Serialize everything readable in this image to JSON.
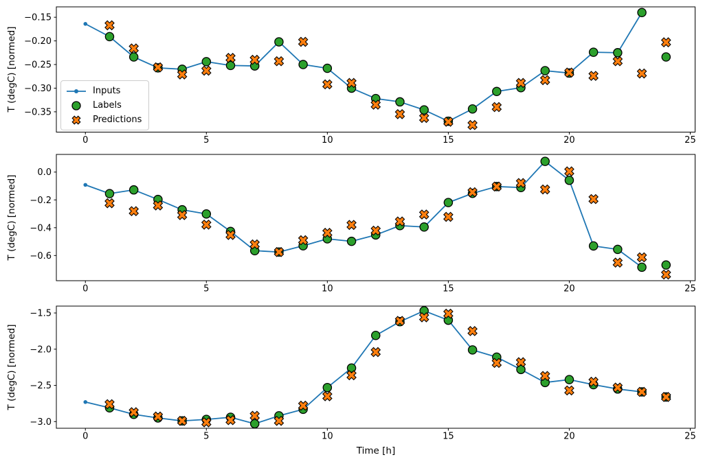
{
  "figure": {
    "background": "#ffffff"
  },
  "legend": {
    "location": "upper left inside first subplot",
    "items": [
      {
        "label": "Inputs",
        "marker": "line-dot",
        "color": "#1f77b4"
      },
      {
        "label": "Labels",
        "marker": "circle",
        "color": "#2ca02c",
        "edge_color": "#000000"
      },
      {
        "label": "Predictions",
        "marker": "x-cross",
        "color": "#ff7f0e",
        "edge_color": "#000000"
      }
    ]
  },
  "chart_data": [
    {
      "name": "subplot-top",
      "type": "line",
      "title": "",
      "xlabel": "",
      "ylabel": "T (degC) [normed]",
      "xlim": [
        -1.2,
        25.2
      ],
      "ylim": [
        -0.393,
        -0.128
      ],
      "xticks": [
        0,
        5,
        10,
        15,
        20,
        25
      ],
      "xtick_labels": [
        "0",
        "5",
        "10",
        "15",
        "20",
        "25"
      ],
      "yticks": [
        -0.15,
        -0.2,
        -0.25,
        -0.3,
        -0.35
      ],
      "ytick_labels": [
        "−0.15",
        "−0.20",
        "−0.25",
        "−0.30",
        "−0.35"
      ],
      "grid": false,
      "series": [
        {
          "name": "Inputs",
          "render": "line",
          "marker": "dot",
          "color": "#1f77b4",
          "x": [
            0,
            1,
            2,
            3,
            4,
            5,
            6,
            7,
            8,
            9,
            10,
            11,
            12,
            13,
            14,
            15,
            16,
            17,
            18,
            19,
            20,
            21,
            22,
            23
          ],
          "y": [
            -0.164,
            -0.191,
            -0.234,
            -0.257,
            -0.26,
            -0.244,
            -0.252,
            -0.253,
            -0.202,
            -0.25,
            -0.258,
            -0.3,
            -0.322,
            -0.329,
            -0.346,
            -0.37,
            -0.344,
            -0.307,
            -0.299,
            -0.263,
            -0.268,
            -0.224,
            -0.225,
            -0.14
          ]
        },
        {
          "name": "Labels",
          "render": "scatter",
          "marker": "circle",
          "color": "#2ca02c",
          "edge_color": "#000000",
          "x": [
            1,
            2,
            3,
            4,
            5,
            6,
            7,
            8,
            9,
            10,
            11,
            12,
            13,
            14,
            15,
            16,
            17,
            18,
            19,
            20,
            21,
            22,
            23,
            24
          ],
          "y": [
            -0.191,
            -0.234,
            -0.257,
            -0.26,
            -0.244,
            -0.252,
            -0.253,
            -0.202,
            -0.25,
            -0.258,
            -0.3,
            -0.322,
            -0.329,
            -0.346,
            -0.37,
            -0.344,
            -0.307,
            -0.299,
            -0.263,
            -0.268,
            -0.224,
            -0.225,
            -0.14,
            -0.234
          ]
        },
        {
          "name": "Predictions",
          "render": "scatter",
          "marker": "X",
          "color": "#ff7f0e",
          "edge_color": "#000000",
          "x": [
            1,
            2,
            3,
            4,
            5,
            6,
            7,
            8,
            9,
            10,
            11,
            12,
            13,
            14,
            15,
            16,
            17,
            18,
            19,
            20,
            21,
            22,
            23,
            24
          ],
          "y": [
            -0.167,
            -0.216,
            -0.256,
            -0.271,
            -0.263,
            -0.236,
            -0.24,
            -0.243,
            -0.202,
            -0.292,
            -0.289,
            -0.335,
            -0.355,
            -0.363,
            -0.371,
            -0.378,
            -0.34,
            -0.289,
            -0.283,
            -0.267,
            -0.274,
            -0.243,
            -0.269,
            -0.203
          ]
        }
      ]
    },
    {
      "name": "subplot-middle",
      "type": "line",
      "title": "",
      "xlabel": "",
      "ylabel": "T (degC) [normed]",
      "xlim": [
        -1.2,
        25.2
      ],
      "ylim": [
        -0.781,
        0.127
      ],
      "xticks": [
        0,
        5,
        10,
        15,
        20,
        25
      ],
      "xtick_labels": [
        "0",
        "5",
        "10",
        "15",
        "20",
        "25"
      ],
      "yticks": [
        0.0,
        -0.2,
        -0.4,
        -0.6
      ],
      "ytick_labels": [
        "0.0",
        "−0.2",
        "−0.4",
        "−0.6"
      ],
      "grid": false,
      "series": [
        {
          "name": "Inputs",
          "render": "line",
          "marker": "dot",
          "color": "#1f77b4",
          "x": [
            0,
            1,
            2,
            3,
            4,
            5,
            6,
            7,
            8,
            9,
            10,
            11,
            12,
            13,
            14,
            15,
            16,
            17,
            18,
            19,
            20,
            21,
            22,
            23
          ],
          "y": [
            -0.092,
            -0.155,
            -0.128,
            -0.197,
            -0.271,
            -0.301,
            -0.427,
            -0.565,
            -0.575,
            -0.53,
            -0.48,
            -0.498,
            -0.452,
            -0.385,
            -0.395,
            -0.219,
            -0.153,
            -0.104,
            -0.111,
            0.077,
            -0.059,
            -0.531,
            -0.556,
            -0.684
          ]
        },
        {
          "name": "Labels",
          "render": "scatter",
          "marker": "circle",
          "color": "#2ca02c",
          "edge_color": "#000000",
          "x": [
            1,
            2,
            3,
            4,
            5,
            6,
            7,
            8,
            9,
            10,
            11,
            12,
            13,
            14,
            15,
            16,
            17,
            18,
            19,
            20,
            21,
            22,
            23,
            24
          ],
          "y": [
            -0.155,
            -0.128,
            -0.197,
            -0.271,
            -0.301,
            -0.427,
            -0.565,
            -0.575,
            -0.53,
            -0.48,
            -0.498,
            -0.452,
            -0.385,
            -0.395,
            -0.219,
            -0.153,
            -0.104,
            -0.111,
            0.077,
            -0.059,
            -0.531,
            -0.556,
            -0.684,
            -0.668
          ]
        },
        {
          "name": "Predictions",
          "render": "scatter",
          "marker": "X",
          "color": "#ff7f0e",
          "edge_color": "#000000",
          "x": [
            1,
            2,
            3,
            4,
            5,
            6,
            7,
            8,
            9,
            10,
            11,
            12,
            13,
            14,
            15,
            16,
            17,
            18,
            19,
            20,
            21,
            22,
            23,
            24
          ],
          "y": [
            -0.224,
            -0.281,
            -0.24,
            -0.309,
            -0.378,
            -0.452,
            -0.52,
            -0.575,
            -0.49,
            -0.437,
            -0.38,
            -0.421,
            -0.355,
            -0.305,
            -0.322,
            -0.145,
            -0.104,
            -0.079,
            -0.125,
            0.005,
            -0.194,
            -0.651,
            -0.613,
            -0.737
          ]
        }
      ]
    },
    {
      "name": "subplot-bottom",
      "type": "line",
      "title": "",
      "xlabel": "Time [h]",
      "ylabel": "T (degC) [normed]",
      "xlim": [
        -1.2,
        25.2
      ],
      "ylim": [
        -3.092,
        -1.405
      ],
      "xticks": [
        0,
        5,
        10,
        15,
        20,
        25
      ],
      "xtick_labels": [
        "0",
        "5",
        "10",
        "15",
        "20",
        "25"
      ],
      "yticks": [
        -1.5,
        -2.0,
        -2.5,
        -3.0
      ],
      "ytick_labels": [
        "−1.5",
        "−2.0",
        "−2.5",
        "−3.0"
      ],
      "grid": false,
      "series": [
        {
          "name": "Inputs",
          "render": "line",
          "marker": "dot",
          "color": "#1f77b4",
          "x": [
            0,
            1,
            2,
            3,
            4,
            5,
            6,
            7,
            8,
            9,
            10,
            11,
            12,
            13,
            14,
            15,
            16,
            17,
            18,
            19,
            20,
            21,
            22,
            23
          ],
          "y": [
            -2.73,
            -2.81,
            -2.9,
            -2.95,
            -2.99,
            -2.97,
            -2.94,
            -3.03,
            -2.92,
            -2.83,
            -2.53,
            -2.26,
            -1.81,
            -1.62,
            -1.47,
            -1.6,
            -2.01,
            -2.11,
            -2.28,
            -2.46,
            -2.42,
            -2.49,
            -2.55,
            -2.59
          ]
        },
        {
          "name": "Labels",
          "render": "scatter",
          "marker": "circle",
          "color": "#2ca02c",
          "edge_color": "#000000",
          "x": [
            1,
            2,
            3,
            4,
            5,
            6,
            7,
            8,
            9,
            10,
            11,
            12,
            13,
            14,
            15,
            16,
            17,
            18,
            19,
            20,
            21,
            22,
            23,
            24
          ],
          "y": [
            -2.81,
            -2.9,
            -2.95,
            -2.99,
            -2.97,
            -2.94,
            -3.03,
            -2.92,
            -2.83,
            -2.53,
            -2.26,
            -1.81,
            -1.62,
            -1.47,
            -1.6,
            -2.01,
            -2.11,
            -2.28,
            -2.46,
            -2.42,
            -2.49,
            -2.55,
            -2.59,
            -2.66
          ]
        },
        {
          "name": "Predictions",
          "render": "scatter",
          "marker": "X",
          "color": "#ff7f0e",
          "edge_color": "#000000",
          "x": [
            1,
            2,
            3,
            4,
            5,
            6,
            7,
            8,
            9,
            10,
            11,
            12,
            13,
            14,
            15,
            16,
            17,
            18,
            19,
            20,
            21,
            22,
            23,
            24
          ],
          "y": [
            -2.76,
            -2.87,
            -2.93,
            -2.99,
            -3.01,
            -2.98,
            -2.92,
            -2.99,
            -2.78,
            -2.65,
            -2.36,
            -2.04,
            -1.61,
            -1.56,
            -1.51,
            -1.75,
            -2.19,
            -2.18,
            -2.37,
            -2.57,
            -2.45,
            -2.53,
            -2.59,
            -2.66
          ]
        }
      ]
    }
  ]
}
